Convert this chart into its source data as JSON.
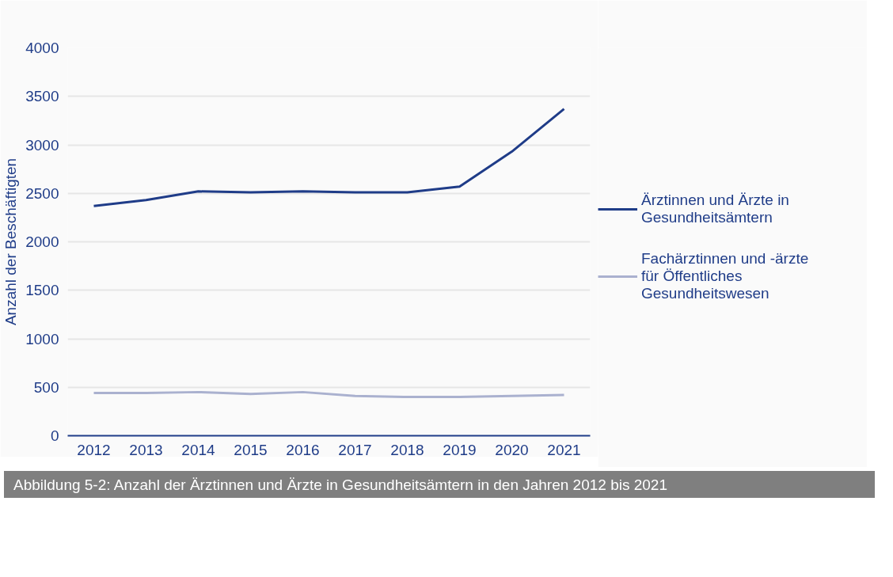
{
  "chart_data": {
    "type": "line",
    "ylabel": "Anzahl der Beschäftigten",
    "categories": [
      "2012",
      "2013",
      "2014",
      "2015",
      "2016",
      "2017",
      "2018",
      "2019",
      "2020",
      "2021"
    ],
    "series": [
      {
        "name": "Ärztinnen und Ärzte in Gesundheitsämtern",
        "color": "#1f3c88",
        "values": [
          2370,
          2430,
          2520,
          2510,
          2520,
          2510,
          2510,
          2570,
          2930,
          3370
        ]
      },
      {
        "name": "Fachärztinnen und -ärzte für Öffentliches Gesundheitswesen",
        "color": "#aab1cf",
        "values": [
          440,
          440,
          450,
          430,
          450,
          410,
          400,
          400,
          410,
          420
        ]
      }
    ],
    "ylim": [
      0,
      4000
    ],
    "yticks": [
      0,
      500,
      1000,
      1500,
      2000,
      2500,
      3000,
      3500,
      4000
    ],
    "grid": "y",
    "legend": "right",
    "marker": "none",
    "line_style": "solid",
    "annotations": [
      "Abbildung 5-2: Anzahl der Ärztinnen und Ärzte in Gesundheitsämtern in den Jahren 2012 bis 2021"
    ]
  }
}
